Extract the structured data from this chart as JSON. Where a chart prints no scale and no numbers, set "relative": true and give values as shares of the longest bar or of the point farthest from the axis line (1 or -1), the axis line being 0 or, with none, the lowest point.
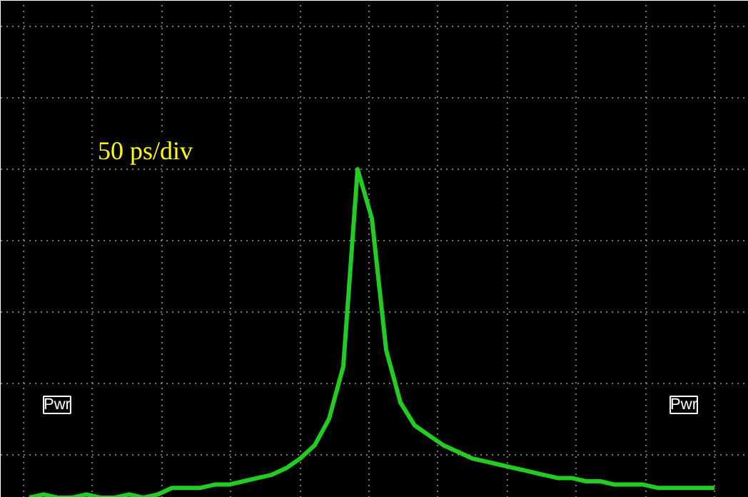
{
  "chart_data": {
    "type": "line",
    "relative": true,
    "grid": true,
    "color": "#22cc22",
    "categories": [
      null,
      null,
      null,
      null,
      null,
      null,
      null,
      null,
      null,
      null,
      null,
      null,
      null,
      null,
      null,
      null,
      null,
      null,
      null,
      null,
      null,
      null,
      null,
      null,
      null,
      null,
      null,
      null,
      null,
      null,
      null,
      null,
      null,
      null,
      null,
      null,
      null,
      null,
      null,
      null,
      null,
      null,
      null,
      null,
      null,
      null,
      null,
      null,
      null
    ],
    "values": [
      0.0,
      0.01,
      0.0,
      0.0,
      0.01,
      0.0,
      0.0,
      0.01,
      0.0,
      0.01,
      0.03,
      0.03,
      0.03,
      0.04,
      0.04,
      0.05,
      0.06,
      0.07,
      0.09,
      0.12,
      0.16,
      0.24,
      0.4,
      1.0,
      0.85,
      0.45,
      0.29,
      0.22,
      0.19,
      0.16,
      0.14,
      0.12,
      0.11,
      0.1,
      0.09,
      0.08,
      0.07,
      0.06,
      0.06,
      0.05,
      0.05,
      0.04,
      0.04,
      0.04,
      0.03,
      0.03,
      0.03,
      0.03,
      0.03
    ],
    "annotations": [
      "50 ps/div",
      "Pwr",
      "Pwr"
    ]
  }
}
